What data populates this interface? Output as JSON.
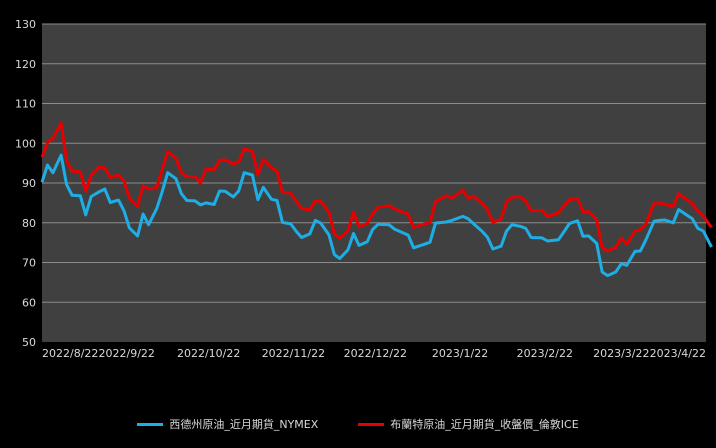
{
  "chart_data": {
    "type": "line",
    "title": "",
    "xlabel": "",
    "ylabel": "",
    "ylim": [
      50,
      130
    ],
    "y_ticks": [
      "50",
      "60",
      "70",
      "80",
      "90",
      "100",
      "110",
      "120",
      "130"
    ],
    "x_range": [
      "2022-08-22",
      "2023-04-22"
    ],
    "x_ticks": [
      {
        "date": "2022-08-22",
        "label": "2022/8/22"
      },
      {
        "date": "2022-09-22",
        "label": "2022/9/22"
      },
      {
        "date": "2022-10-22",
        "label": "2022/10/22"
      },
      {
        "date": "2022-11-22",
        "label": "2022/11/22"
      },
      {
        "date": "2022-12-22",
        "label": "2022/12/22"
      },
      {
        "date": "2023-01-22",
        "label": "2023/1/22"
      },
      {
        "date": "2023-02-22",
        "label": "2023/2/22"
      },
      {
        "date": "2023-03-22",
        "label": "2023/3/22"
      },
      {
        "date": "2023-04-22",
        "label": "2023/4/22"
      }
    ],
    "grid": true,
    "legend_position": "bottom",
    "colors": {
      "background": "#000000",
      "plot_area": "#404040",
      "grid": "#8c8c8c",
      "text": "#d9d9d9"
    },
    "series": [
      {
        "name": "西德州原油_近月期貨_NYMEX",
        "color": "#1eaee6",
        "x": [
          "2022-08-22",
          "2022-08-24",
          "2022-08-26",
          "2022-08-29",
          "2022-08-31",
          "2022-09-02",
          "2022-09-05",
          "2022-09-07",
          "2022-09-09",
          "2022-09-12",
          "2022-09-14",
          "2022-09-16",
          "2022-09-19",
          "2022-09-21",
          "2022-09-23",
          "2022-09-26",
          "2022-09-28",
          "2022-09-30",
          "2022-10-03",
          "2022-10-05",
          "2022-10-07",
          "2022-10-10",
          "2022-10-12",
          "2022-10-14",
          "2022-10-17",
          "2022-10-19",
          "2022-10-21",
          "2022-10-24",
          "2022-10-26",
          "2022-10-28",
          "2022-10-31",
          "2022-11-02",
          "2022-11-04",
          "2022-11-07",
          "2022-11-09",
          "2022-11-11",
          "2022-11-14",
          "2022-11-16",
          "2022-11-18",
          "2022-11-21",
          "2022-11-23",
          "2022-11-25",
          "2022-11-28",
          "2022-11-30",
          "2022-12-02",
          "2022-12-05",
          "2022-12-07",
          "2022-12-09",
          "2022-12-12",
          "2022-12-14",
          "2022-12-16",
          "2022-12-19",
          "2022-12-21",
          "2022-12-23",
          "2022-12-27",
          "2022-12-29",
          "2023-01-03",
          "2023-01-05",
          "2023-01-09",
          "2023-01-11",
          "2023-01-13",
          "2023-01-17",
          "2023-01-19",
          "2023-01-23",
          "2023-01-25",
          "2023-01-27",
          "2023-01-30",
          "2023-02-01",
          "2023-02-03",
          "2023-02-06",
          "2023-02-08",
          "2023-02-10",
          "2023-02-13",
          "2023-02-15",
          "2023-02-17",
          "2023-02-21",
          "2023-02-23",
          "2023-02-27",
          "2023-03-01",
          "2023-03-03",
          "2023-03-06",
          "2023-03-08",
          "2023-03-10",
          "2023-03-13",
          "2023-03-15",
          "2023-03-17",
          "2023-03-20",
          "2023-03-22",
          "2023-03-24",
          "2023-03-27",
          "2023-03-29",
          "2023-03-31",
          "2023-04-03",
          "2023-04-05",
          "2023-04-07",
          "2023-04-10",
          "2023-04-12",
          "2023-04-14",
          "2023-04-17",
          "2023-04-19",
          "2023-04-21",
          "2023-04-24"
        ],
        "values": [
          90.2,
          94.5,
          92.6,
          97.0,
          89.6,
          86.9,
          86.8,
          82.0,
          86.6,
          87.8,
          88.5,
          85.1,
          85.7,
          83.0,
          78.7,
          76.7,
          82.2,
          79.5,
          83.6,
          87.8,
          92.6,
          91.1,
          87.3,
          85.6,
          85.5,
          84.5,
          85.0,
          84.6,
          88.0,
          87.9,
          86.5,
          88.0,
          92.6,
          92.0,
          85.8,
          88.9,
          85.9,
          85.6,
          80.1,
          79.7,
          77.9,
          76.3,
          77.2,
          80.6,
          79.9,
          77.0,
          72.0,
          71.0,
          73.2,
          77.3,
          74.3,
          75.2,
          78.3,
          79.6,
          79.5,
          78.4,
          76.9,
          73.7,
          74.6,
          75.1,
          79.9,
          80.2,
          80.6,
          81.6,
          81.0,
          79.7,
          77.9,
          76.4,
          73.4,
          74.1,
          77.9,
          79.5,
          79.1,
          78.6,
          76.3,
          76.2,
          75.4,
          75.7,
          77.7,
          79.8,
          80.5,
          76.6,
          76.7,
          74.8,
          67.6,
          66.7,
          67.6,
          69.7,
          69.3,
          72.8,
          72.9,
          75.7,
          80.4,
          80.6,
          80.7,
          80.0,
          83.3,
          82.4,
          81.0,
          78.6,
          77.9,
          73.9
        ]
      },
      {
        "name": "布蘭特原油_近月期貨_收盤價_倫敦ICE",
        "color": "#e60000",
        "x": [
          "2022-08-22",
          "2022-08-24",
          "2022-08-26",
          "2022-08-29",
          "2022-08-31",
          "2022-09-02",
          "2022-09-05",
          "2022-09-07",
          "2022-09-09",
          "2022-09-12",
          "2022-09-14",
          "2022-09-16",
          "2022-09-19",
          "2022-09-21",
          "2022-09-23",
          "2022-09-26",
          "2022-09-28",
          "2022-09-30",
          "2022-10-03",
          "2022-10-05",
          "2022-10-07",
          "2022-10-10",
          "2022-10-12",
          "2022-10-14",
          "2022-10-17",
          "2022-10-19",
          "2022-10-21",
          "2022-10-24",
          "2022-10-26",
          "2022-10-28",
          "2022-10-31",
          "2022-11-02",
          "2022-11-04",
          "2022-11-07",
          "2022-11-09",
          "2022-11-11",
          "2022-11-14",
          "2022-11-16",
          "2022-11-18",
          "2022-11-21",
          "2022-11-23",
          "2022-11-25",
          "2022-11-28",
          "2022-11-30",
          "2022-12-02",
          "2022-12-05",
          "2022-12-07",
          "2022-12-09",
          "2022-12-12",
          "2022-12-14",
          "2022-12-16",
          "2022-12-19",
          "2022-12-21",
          "2022-12-23",
          "2022-12-27",
          "2022-12-29",
          "2023-01-03",
          "2023-01-05",
          "2023-01-09",
          "2023-01-11",
          "2023-01-13",
          "2023-01-17",
          "2023-01-19",
          "2023-01-23",
          "2023-01-25",
          "2023-01-27",
          "2023-01-30",
          "2023-02-01",
          "2023-02-03",
          "2023-02-06",
          "2023-02-08",
          "2023-02-10",
          "2023-02-13",
          "2023-02-15",
          "2023-02-17",
          "2023-02-21",
          "2023-02-23",
          "2023-02-27",
          "2023-03-01",
          "2023-03-03",
          "2023-03-06",
          "2023-03-08",
          "2023-03-10",
          "2023-03-13",
          "2023-03-15",
          "2023-03-17",
          "2023-03-20",
          "2023-03-22",
          "2023-03-24",
          "2023-03-27",
          "2023-03-29",
          "2023-03-31",
          "2023-04-03",
          "2023-04-05",
          "2023-04-07",
          "2023-04-10",
          "2023-04-12",
          "2023-04-14",
          "2023-04-17",
          "2023-04-19",
          "2023-04-21",
          "2023-04-24"
        ],
        "values": [
          96.5,
          100.2,
          101.2,
          105.1,
          95.6,
          93.0,
          92.8,
          88.0,
          91.9,
          94.0,
          93.8,
          91.4,
          92.0,
          90.5,
          86.2,
          84.1,
          89.3,
          88.5,
          88.9,
          93.4,
          97.9,
          96.2,
          92.6,
          91.6,
          91.6,
          90.0,
          93.5,
          93.3,
          95.7,
          95.8,
          94.8,
          95.2,
          98.6,
          98.0,
          92.0,
          95.9,
          93.9,
          92.9,
          87.6,
          87.5,
          85.4,
          83.6,
          83.2,
          85.5,
          85.4,
          82.7,
          77.2,
          76.1,
          78.0,
          82.7,
          79.0,
          79.8,
          82.2,
          83.9,
          84.3,
          83.5,
          82.1,
          78.8,
          79.7,
          80.1,
          85.3,
          86.8,
          86.2,
          88.2,
          86.1,
          86.7,
          84.9,
          83.4,
          80.1,
          80.9,
          85.2,
          86.4,
          86.6,
          85.4,
          83.0,
          83.1,
          81.6,
          82.5,
          84.3,
          85.8,
          86.1,
          82.7,
          82.8,
          80.8,
          73.7,
          72.9,
          73.8,
          76.2,
          74.6,
          77.9,
          78.3,
          79.8,
          84.9,
          85.0,
          84.6,
          84.2,
          87.3,
          86.3,
          84.8,
          83.0,
          81.7,
          78.8
        ]
      }
    ]
  }
}
